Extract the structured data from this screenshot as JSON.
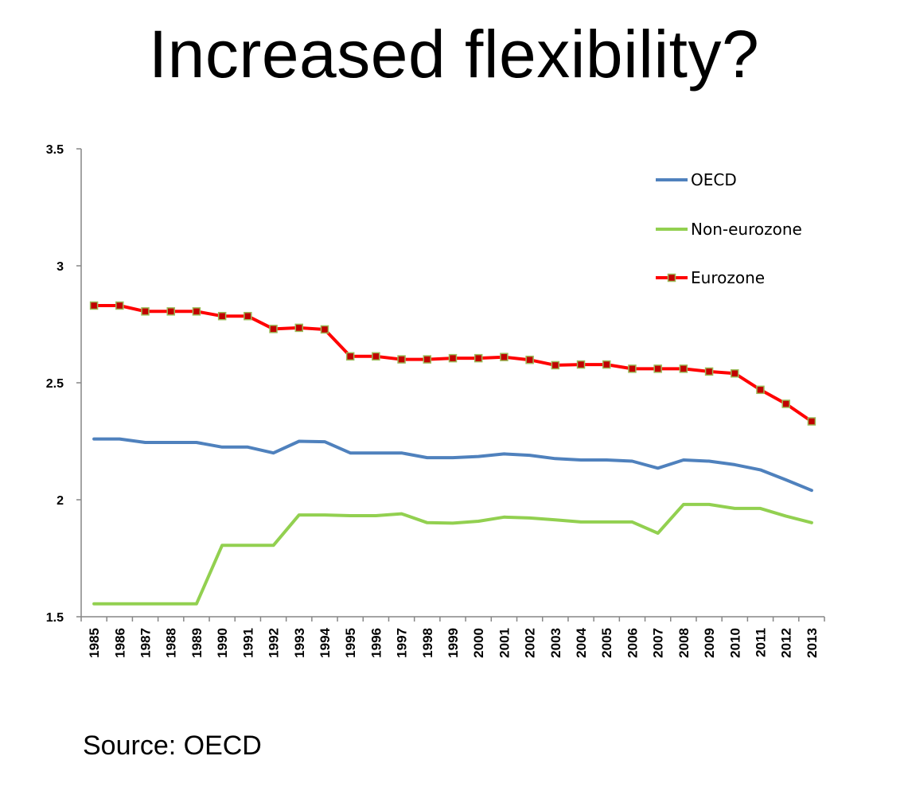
{
  "page": {
    "title": "Increased flexibility?",
    "source": "Source: OECD"
  },
  "colors": {
    "oecd": "#4f81bd",
    "non_eurozone": "#92d050",
    "eurozone_line": "#ff0000",
    "eurozone_marker_fill": "#c00000",
    "eurozone_marker_border": "#9bbb59",
    "axis": "#868686"
  },
  "chart_data": {
    "type": "line",
    "title": "",
    "xlabel": "",
    "ylabel": "",
    "ylim": [
      1.5,
      3.5
    ],
    "yticks": [
      "1.5",
      "2",
      "2.5",
      "3",
      "3.5"
    ],
    "grid": false,
    "legend_position": "top-right",
    "categories": [
      "1985",
      "1986",
      "1987",
      "1988",
      "1989",
      "1990",
      "1991",
      "1992",
      "1993",
      "1994",
      "1995",
      "1996",
      "1997",
      "1998",
      "1999",
      "2000",
      "2001",
      "2002",
      "2003",
      "2004",
      "2005",
      "2006",
      "2007",
      "2008",
      "2009",
      "2010",
      "2011",
      "2012",
      "2013"
    ],
    "series": [
      {
        "name": "OECD",
        "color_key": "oecd",
        "markers": false,
        "values": [
          2.26,
          2.26,
          2.245,
          2.245,
          2.245,
          2.225,
          2.225,
          2.2,
          2.25,
          2.248,
          2.2,
          2.2,
          2.2,
          2.18,
          2.18,
          2.185,
          2.196,
          2.19,
          2.176,
          2.17,
          2.17,
          2.165,
          2.135,
          2.17,
          2.165,
          2.15,
          2.128,
          2.085,
          2.04
        ]
      },
      {
        "name": "Non-eurozone",
        "color_key": "non_eurozone",
        "markers": false,
        "values": [
          1.555,
          1.555,
          1.555,
          1.555,
          1.555,
          1.805,
          1.805,
          1.805,
          1.935,
          1.935,
          1.932,
          1.932,
          1.94,
          1.902,
          1.9,
          1.908,
          1.926,
          1.922,
          1.914,
          1.905,
          1.905,
          1.905,
          1.857,
          1.98,
          1.98,
          1.963,
          1.963,
          1.93,
          1.902
        ]
      },
      {
        "name": "Eurozone",
        "color_key": "eurozone_line",
        "markers": true,
        "values": [
          2.83,
          2.83,
          2.805,
          2.805,
          2.805,
          2.785,
          2.785,
          2.73,
          2.735,
          2.728,
          2.613,
          2.613,
          2.6,
          2.6,
          2.605,
          2.605,
          2.61,
          2.598,
          2.575,
          2.578,
          2.578,
          2.56,
          2.56,
          2.56,
          2.548,
          2.54,
          2.47,
          2.41,
          2.335
        ]
      }
    ]
  }
}
